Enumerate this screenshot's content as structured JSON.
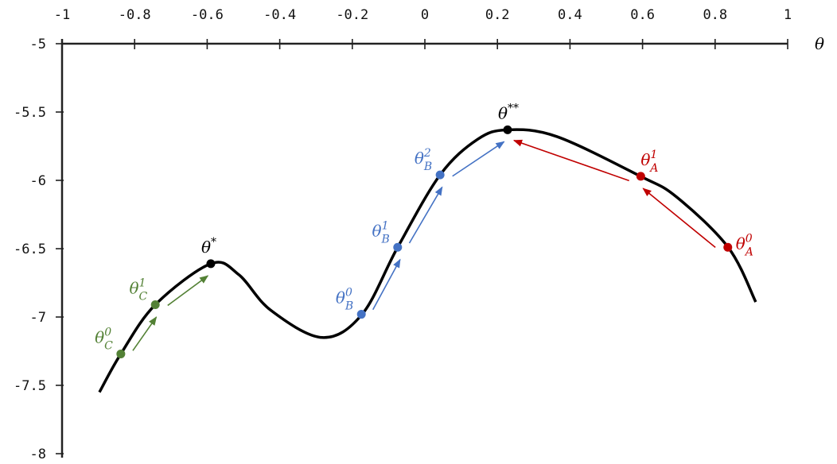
{
  "chart_data": {
    "type": "line",
    "xlabel": "θ",
    "ylabel": "",
    "xlim": [
      -1,
      1
    ],
    "ylim": [
      -8,
      -5
    ],
    "x_ticks": [
      "-1",
      "-0.8",
      "-0.6",
      "-0.4",
      "-0.2",
      "0",
      "0.2",
      "0.4",
      "0.6",
      "0.8",
      "1"
    ],
    "x_tick_values": [
      -1,
      -0.8,
      -0.6,
      -0.4,
      -0.2,
      0,
      0.2,
      0.4,
      0.6,
      0.8,
      1
    ],
    "y_ticks": [
      "-5",
      "-5.5",
      "-6",
      "-6.5",
      "-7",
      "-7.5",
      "-8"
    ],
    "y_tick_values": [
      -5,
      -5.5,
      -6,
      -6.5,
      -7,
      -7.5,
      -8
    ],
    "x_axis_position": "top",
    "grid": false,
    "curve": {
      "color": "#000000",
      "x": [
        -0.897,
        -0.838,
        -0.743,
        -0.59,
        -0.513,
        -0.425,
        -0.283,
        -0.173,
        -0.075,
        0.042,
        0.145,
        0.228,
        0.364,
        0.594,
        0.693,
        0.836,
        0.912
      ],
      "y": [
        -7.55,
        -7.27,
        -6.91,
        -6.61,
        -6.69,
        -6.95,
        -7.15,
        -6.98,
        -6.49,
        -5.96,
        -5.7,
        -5.63,
        -5.68,
        -5.97,
        -6.12,
        -6.49,
        -6.89
      ]
    },
    "optima": [
      {
        "symbol": "θ",
        "sup": "*",
        "sub": "",
        "x": -0.59,
        "y": -6.61,
        "color": "#000000"
      },
      {
        "symbol": "θ",
        "sup": "**",
        "sub": "",
        "x": 0.228,
        "y": -5.63,
        "color": "#000000"
      }
    ],
    "paths": [
      {
        "name": "C",
        "color": "#538135",
        "points": [
          {
            "symbol": "θ",
            "sub": "C",
            "sup": "0",
            "x": -0.838,
            "y": -7.27
          },
          {
            "symbol": "θ",
            "sub": "C",
            "sup": "1",
            "x": -0.743,
            "y": -6.91
          }
        ],
        "target": {
          "x": -0.59,
          "y": -6.61
        }
      },
      {
        "name": "B",
        "color": "#4472C4",
        "points": [
          {
            "symbol": "θ",
            "sub": "B",
            "sup": "0",
            "x": -0.175,
            "y": -6.98
          },
          {
            "symbol": "θ",
            "sub": "B",
            "sup": "1",
            "x": -0.075,
            "y": -6.49
          },
          {
            "symbol": "θ",
            "sub": "B",
            "sup": "2",
            "x": 0.042,
            "y": -5.96
          }
        ],
        "target": {
          "x": 0.228,
          "y": -5.63
        }
      },
      {
        "name": "A",
        "color": "#C00000",
        "points": [
          {
            "symbol": "θ",
            "sub": "A",
            "sup": "0",
            "x": 0.835,
            "y": -6.49
          },
          {
            "symbol": "θ",
            "sub": "A",
            "sup": "1",
            "x": 0.595,
            "y": -5.97
          }
        ],
        "target": {
          "x": 0.228,
          "y": -5.63
        }
      }
    ]
  }
}
